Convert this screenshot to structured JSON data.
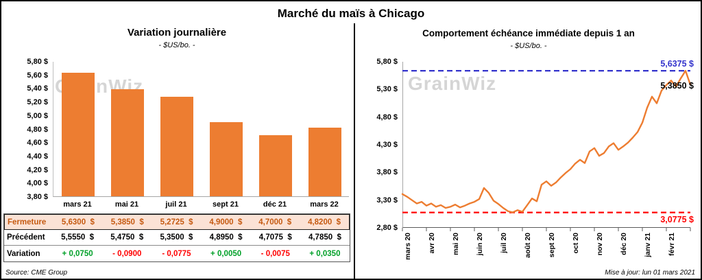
{
  "page": {
    "title": "Marché du maïs à Chicago",
    "source_note": "Source: CME Group",
    "update_note": "Mise à jour: lun 01 mars 2021",
    "watermark": "GrainWiz"
  },
  "colors": {
    "orange": "#ED7D31",
    "peach_row_bg": "#FBE2D5",
    "brown_text": "#C55A11",
    "positive_green": "#00A028",
    "negative_red": "#FF0000",
    "reference_blue": "#3333CC",
    "reference_red": "#FF0000"
  },
  "chart_data": [
    {
      "id": "daily-variation-bars",
      "type": "bar",
      "title": "Variation journalière",
      "subtitle": "- $US/bo. -",
      "categories": [
        "mars 21",
        "mai 21",
        "juil 21",
        "sept 21",
        "déc 21",
        "mars 22"
      ],
      "values": [
        5.63,
        5.385,
        5.2725,
        4.9,
        4.7,
        4.82
      ],
      "ylim": [
        3.8,
        5.8
      ],
      "ytick_labels": [
        "5,80 $",
        "5,60 $",
        "5,40 $",
        "5,20 $",
        "5,00 $",
        "4,80 $",
        "4,60 $",
        "4,40 $",
        "4,20 $",
        "4,00 $",
        "3,80 $"
      ],
      "bar_color": "#ED7D31",
      "grid": false,
      "legend": "none"
    },
    {
      "id": "front-month-line",
      "type": "line",
      "title": "Comportement échéance immédiate depuis 1 an",
      "subtitle": "- $US/bo. -",
      "x_labels": [
        "mars 20",
        "avr 20",
        "mai 20",
        "juin 20",
        "juil 20",
        "août 20",
        "sept 20",
        "oct 20",
        "nov 20",
        "déc 20",
        "janv 21",
        "févr 21"
      ],
      "values": [
        3.41,
        3.36,
        3.3,
        3.24,
        3.27,
        3.2,
        3.24,
        3.18,
        3.21,
        3.16,
        3.18,
        3.22,
        3.17,
        3.2,
        3.24,
        3.27,
        3.32,
        3.52,
        3.43,
        3.29,
        3.23,
        3.16,
        3.1,
        3.08,
        3.12,
        3.09,
        3.21,
        3.33,
        3.28,
        3.58,
        3.64,
        3.56,
        3.62,
        3.71,
        3.79,
        3.86,
        3.96,
        4.03,
        3.97,
        4.18,
        4.24,
        4.1,
        4.15,
        4.27,
        4.33,
        4.21,
        4.27,
        4.34,
        4.43,
        4.53,
        4.7,
        4.97,
        5.17,
        5.05,
        5.28,
        5.38,
        5.46,
        5.35,
        5.5,
        5.6375,
        5.385
      ],
      "ylim": [
        2.8,
        5.8
      ],
      "ytick_labels": [
        "5,80 $",
        "5,30 $",
        "4,80 $",
        "4,30 $",
        "3,80 $",
        "3,30 $",
        "2,80 $"
      ],
      "line_color": "#ED7D31",
      "reference_lines": [
        {
          "value": 5.6375,
          "label": "5,6375 $",
          "color": "#3333CC",
          "style": "dashed"
        },
        {
          "value": 3.0775,
          "label": "3,0775 $",
          "color": "#FF0000",
          "style": "dashed"
        }
      ],
      "last_point_label": {
        "value": 5.385,
        "label": "5,3850 $",
        "color": "#000000"
      },
      "grid": false,
      "legend": "none"
    }
  ],
  "table": {
    "rows": [
      {
        "id": "fermeture",
        "label": "Fermeture",
        "values": [
          "5,6300  $",
          "5,3850  $",
          "5,2725  $",
          "4,9000  $",
          "4,7000  $",
          "4,8200  $"
        ]
      },
      {
        "id": "precedent",
        "label": "Précédent",
        "values": [
          "5,5550  $",
          "5,4750  $",
          "5,3500  $",
          "4,8950  $",
          "4,7075  $",
          "4,7850  $"
        ]
      },
      {
        "id": "variation",
        "label": "Variation",
        "values": [
          "+ 0,0750",
          "- 0,0900",
          "- 0,0775",
          "+ 0,0050",
          "- 0,0075",
          "+ 0,0350"
        ]
      }
    ]
  }
}
